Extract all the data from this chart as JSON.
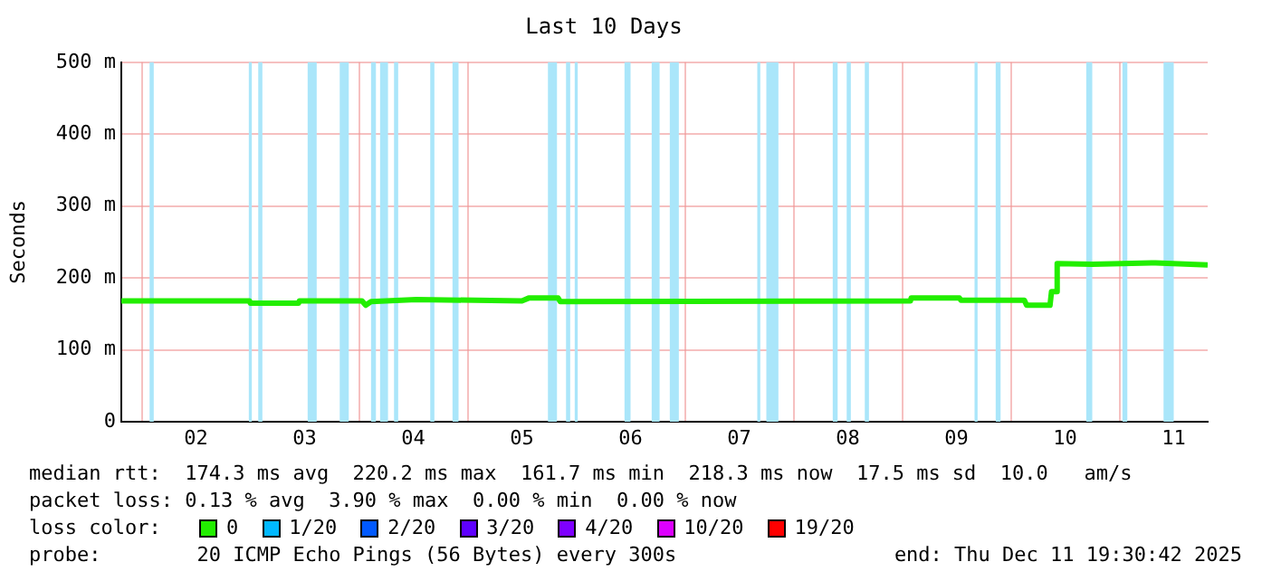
{
  "chart_data": {
    "type": "line",
    "title": "Last 10 Days",
    "ylabel": "Seconds",
    "xlim": [
      "2025-12-01T19:30",
      "2025-12-11T19:30"
    ],
    "xticks": [
      {
        "value": "2025-12-02T00:00",
        "label": null
      },
      {
        "value": "2025-12-02T12:00",
        "label": "02"
      },
      {
        "value": "2025-12-03T00:00",
        "label": null
      },
      {
        "value": "2025-12-03T12:00",
        "label": "03"
      },
      {
        "value": "2025-12-04T00:00",
        "label": null
      },
      {
        "value": "2025-12-04T12:00",
        "label": "04"
      },
      {
        "value": "2025-12-05T00:00",
        "label": null
      },
      {
        "value": "2025-12-05T12:00",
        "label": "05"
      },
      {
        "value": "2025-12-06T00:00",
        "label": null
      },
      {
        "value": "2025-12-06T12:00",
        "label": "06"
      },
      {
        "value": "2025-12-07T00:00",
        "label": null
      },
      {
        "value": "2025-12-07T12:00",
        "label": "07"
      },
      {
        "value": "2025-12-08T00:00",
        "label": null
      },
      {
        "value": "2025-12-08T12:00",
        "label": "08"
      },
      {
        "value": "2025-12-09T00:00",
        "label": null
      },
      {
        "value": "2025-12-09T12:00",
        "label": "09"
      },
      {
        "value": "2025-12-10T00:00",
        "label": null
      },
      {
        "value": "2025-12-10T12:00",
        "label": "10"
      },
      {
        "value": "2025-12-11T00:00",
        "label": null
      },
      {
        "value": "2025-12-11T12:00",
        "label": "11"
      }
    ],
    "ylim": [
      0,
      500
    ],
    "yticks": [
      0,
      {
        "value": 100,
        "label": "100 m"
      },
      {
        "value": 200,
        "label": "200 m"
      },
      {
        "value": 300,
        "label": "300 m"
      },
      {
        "value": 400,
        "label": "400 m"
      },
      {
        "value": 500,
        "label": "500 m"
      }
    ],
    "grid": true,
    "legend": "bottom",
    "legend_title": "loss color:",
    "series": [
      {
        "name": "0",
        "color": "#22ee00",
        "x": [
          "2025-12-01T19:30",
          "2025-12-02T23:50",
          "2025-12-03T00:00",
          "2025-12-03T10:40",
          "2025-12-03T10:50",
          "2025-12-04T00:40",
          "2025-12-04T01:30",
          "2025-12-04T02:40",
          "2025-12-04T12:40",
          "2025-12-05T12:00",
          "2025-12-05T13:30",
          "2025-12-05T20:00",
          "2025-12-05T20:30",
          "2025-12-09T01:50",
          "2025-12-09T02:00",
          "2025-12-09T12:40",
          "2025-12-09T13:00",
          "2025-12-10T03:00",
          "2025-12-10T03:30",
          "2025-12-10T08:40",
          "2025-12-10T09:00",
          "2025-12-10T10:00",
          "2025-12-10T10:15",
          "2025-12-10T18:00",
          "2025-12-11T08:00",
          "2025-12-11T19:30"
        ],
        "values": [
          168,
          168,
          165,
          165,
          168,
          168,
          162,
          167,
          170,
          168,
          172,
          172,
          167,
          168,
          172,
          172,
          169,
          169,
          162,
          162,
          181,
          181,
          220,
          219,
          221,
          218
        ]
      },
      {
        "name": "1/20",
        "color": "#00b8ff"
      },
      {
        "name": "2/20",
        "color": "#0059ff"
      },
      {
        "name": "3/20",
        "color": "#5e00ff"
      },
      {
        "name": "4/20",
        "color": "#7e00ff"
      },
      {
        "name": "10/20",
        "color": "#dd00ff"
      },
      {
        "name": "19/20",
        "color": "#ff0000"
      }
    ],
    "bands": [
      {
        "axis": "x",
        "from": "2025-12-02T01:45",
        "to": "2025-12-02T02:40",
        "color": "#aae6fa"
      },
      {
        "axis": "x",
        "from": "2025-12-02T23:40",
        "to": "2025-12-03T00:20",
        "color": "#aae6fa"
      },
      {
        "axis": "x",
        "from": "2025-12-03T01:45",
        "to": "2025-12-03T02:40",
        "color": "#aae6fa"
      },
      {
        "axis": "x",
        "from": "2025-12-03T12:40",
        "to": "2025-12-03T14:40",
        "color": "#aae6fa"
      },
      {
        "axis": "x",
        "from": "2025-12-03T19:45",
        "to": "2025-12-03T21:45",
        "color": "#aae6fa"
      },
      {
        "axis": "x",
        "from": "2025-12-04T02:40",
        "to": "2025-12-04T03:45",
        "color": "#aae6fa"
      },
      {
        "axis": "x",
        "from": "2025-12-04T04:40",
        "to": "2025-12-04T06:25",
        "color": "#aae6fa"
      },
      {
        "axis": "x",
        "from": "2025-12-04T07:45",
        "to": "2025-12-04T08:40",
        "color": "#aae6fa"
      },
      {
        "axis": "x",
        "from": "2025-12-04T15:45",
        "to": "2025-12-04T16:40",
        "color": "#aae6fa"
      },
      {
        "axis": "x",
        "from": "2025-12-04T20:40",
        "to": "2025-12-04T22:00",
        "color": "#aae6fa"
      },
      {
        "axis": "x",
        "from": "2025-12-05T17:45",
        "to": "2025-12-05T19:45",
        "color": "#aae6fa"
      },
      {
        "axis": "x",
        "from": "2025-12-05T21:45",
        "to": "2025-12-05T22:40",
        "color": "#aae6fa"
      },
      {
        "axis": "x",
        "from": "2025-12-05T23:40",
        "to": "2025-12-06T00:20",
        "color": "#aae6fa"
      },
      {
        "axis": "x",
        "from": "2025-12-06T10:40",
        "to": "2025-12-06T12:00",
        "color": "#aae6fa"
      },
      {
        "axis": "x",
        "from": "2025-12-06T16:40",
        "to": "2025-12-06T18:25",
        "color": "#aae6fa"
      },
      {
        "axis": "x",
        "from": "2025-12-06T20:40",
        "to": "2025-12-06T22:40",
        "color": "#aae6fa"
      },
      {
        "axis": "x",
        "from": "2025-12-07T16:00",
        "to": "2025-12-07T16:40",
        "color": "#aae6fa"
      },
      {
        "axis": "x",
        "from": "2025-12-07T18:00",
        "to": "2025-12-07T20:40",
        "color": "#aae6fa"
      },
      {
        "axis": "x",
        "from": "2025-12-08T08:40",
        "to": "2025-12-08T09:45",
        "color": "#aae6fa"
      },
      {
        "axis": "x",
        "from": "2025-12-08T11:45",
        "to": "2025-12-08T12:40",
        "color": "#aae6fa"
      },
      {
        "axis": "x",
        "from": "2025-12-08T15:45",
        "to": "2025-12-08T16:40",
        "color": "#aae6fa"
      },
      {
        "axis": "x",
        "from": "2025-12-09T16:00",
        "to": "2025-12-09T16:40",
        "color": "#aae6fa"
      },
      {
        "axis": "x",
        "from": "2025-12-09T20:40",
        "to": "2025-12-09T21:45",
        "color": "#aae6fa"
      },
      {
        "axis": "x",
        "from": "2025-12-10T16:40",
        "to": "2025-12-10T18:00",
        "color": "#aae6fa"
      },
      {
        "axis": "x",
        "from": "2025-12-11T00:40",
        "to": "2025-12-11T01:45",
        "color": "#aae6fa"
      },
      {
        "axis": "x",
        "from": "2025-12-11T09:45",
        "to": "2025-12-11T12:00",
        "color": "#aae6fa"
      }
    ],
    "annotations": [
      "median rtt:  174.3 ms avg  220.2 ms max  161.7 ms min  218.3 ms now  17.5 ms sd  10.0   am/s",
      "packet loss: 0.13 % avg  3.90 % max  0.00 % min  0.00 % now",
      "probe:        20 ICMP Echo Pings (56 Bytes) every 300s",
      "end: Thu Dec 11 19:30:42 2025"
    ]
  }
}
